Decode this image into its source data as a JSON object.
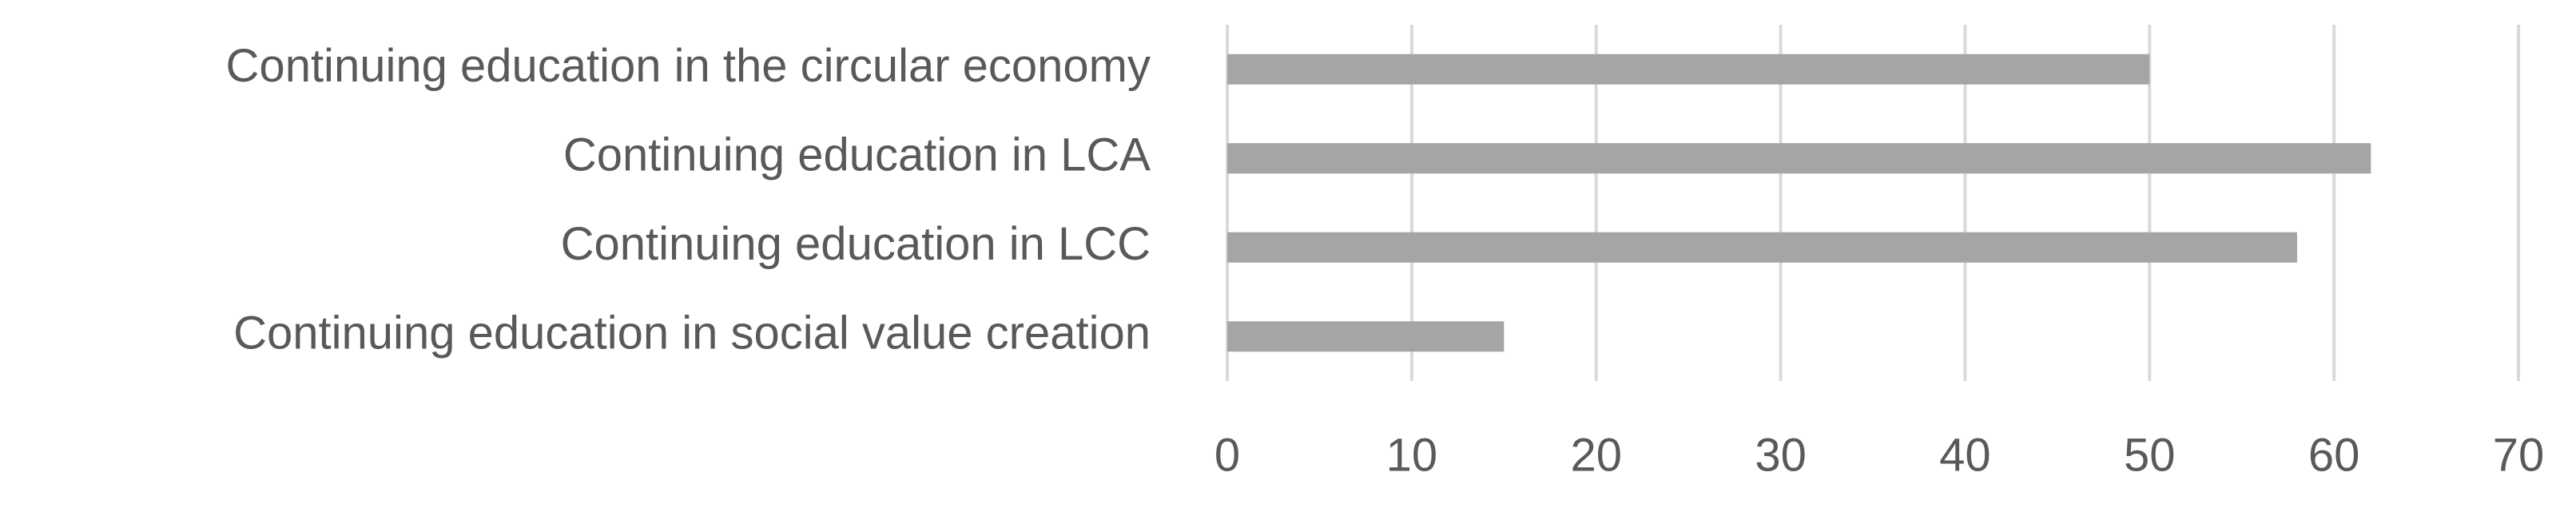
{
  "chart_data": {
    "type": "bar",
    "orientation": "horizontal",
    "categories": [
      "Continuing education in the circular economy",
      "Continuing education in LCA",
      "Continuing education in LCC",
      "Continuing education in social value creation"
    ],
    "values": [
      50,
      62,
      58,
      15
    ],
    "color": "#a5a5a5",
    "xlim": [
      0,
      70
    ],
    "xticks": [
      0,
      10,
      20,
      30,
      40,
      50,
      60,
      70
    ],
    "grid": true
  }
}
